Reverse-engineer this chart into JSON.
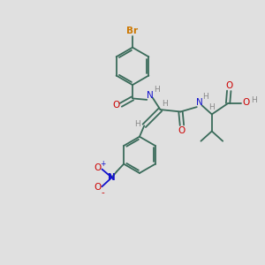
{
  "bg_color": "#e0e0e0",
  "bond_color": "#3a6b5a",
  "atom_colors": {
    "Br": "#cc7700",
    "O": "#cc0000",
    "N": "#1111cc",
    "H": "#888888",
    "NO2_N": "#1111cc",
    "NO2_O": "#cc0000"
  },
  "figsize": [
    3.0,
    3.0
  ],
  "dpi": 100
}
